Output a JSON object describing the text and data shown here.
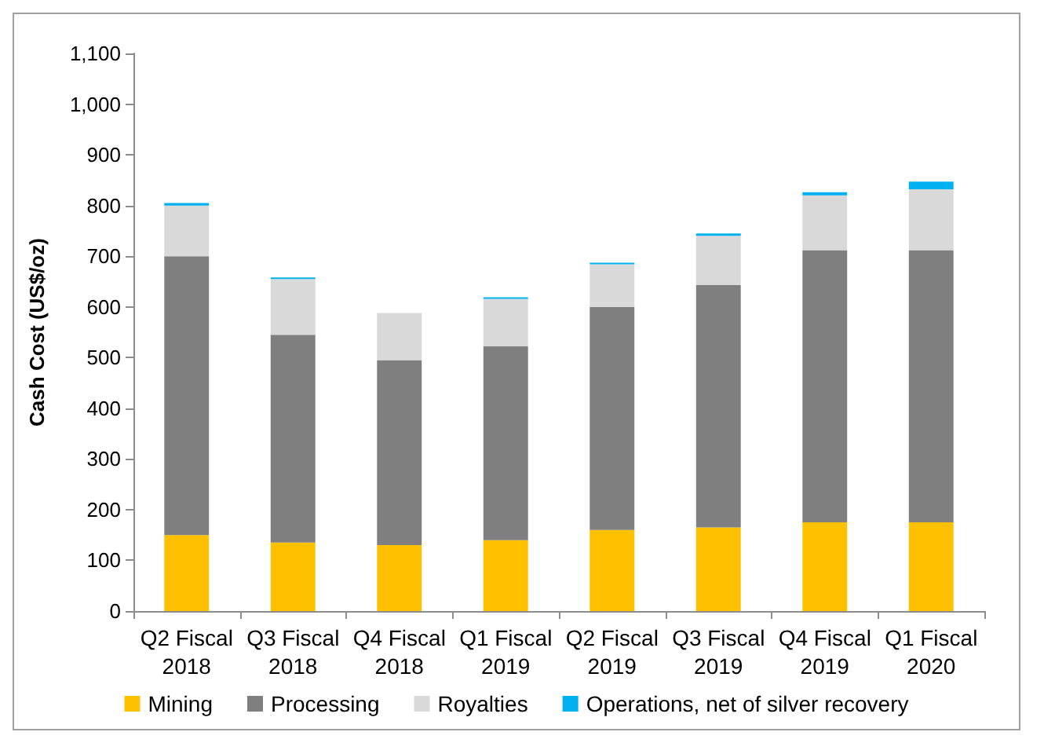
{
  "chart_data": {
    "type": "bar",
    "stacked": true,
    "ylabel": "Cash Cost (US$/oz)",
    "categories": [
      "Q2 Fiscal\n2018",
      "Q3 Fiscal\n2018",
      "Q4 Fiscal\n2018",
      "Q1 Fiscal\n2019",
      "Q2 Fiscal\n2019",
      "Q3 Fiscal\n2019",
      "Q4 Fiscal\n2019",
      "Q1 Fiscal\n2020"
    ],
    "series": [
      {
        "name": "Mining",
        "color": "#ffc000",
        "values": [
          150,
          135,
          130,
          140,
          160,
          165,
          175,
          175
        ]
      },
      {
        "name": "Processing",
        "color": "#7f7f7f",
        "values": [
          550,
          410,
          365,
          382,
          440,
          478,
          537,
          537
        ]
      },
      {
        "name": "Royalties",
        "color": "#d9d9d9",
        "values": [
          100,
          110,
          93,
          94,
          84,
          97,
          108,
          120
        ]
      },
      {
        "name": "Operations, net of silver recovery",
        "color": "#00b0f0",
        "values": [
          5,
          3,
          0,
          3,
          3,
          5,
          6,
          15
        ]
      }
    ],
    "ylim": [
      0,
      1100
    ],
    "yticks": [
      0,
      100,
      200,
      300,
      400,
      500,
      600,
      700,
      800,
      900,
      {
        "value": 1000,
        "label": "1,000"
      },
      {
        "value": 1100,
        "label": "1,100"
      }
    ],
    "grid": false,
    "legend": "bottom"
  }
}
